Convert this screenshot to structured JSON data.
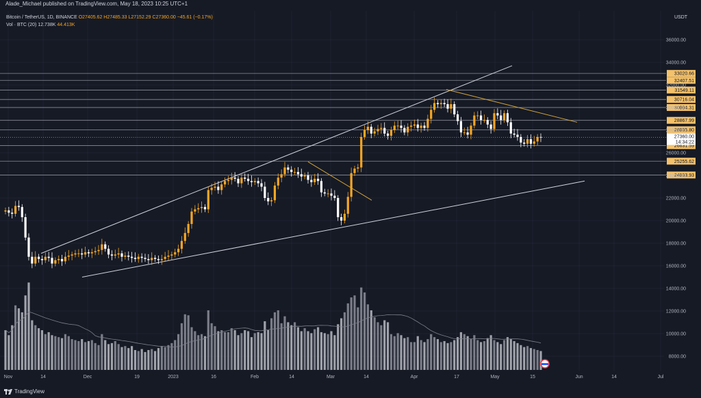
{
  "header": {
    "published": "Alade_Michael published on TradingView.com, May 18, 2023 10:25 UTC+1"
  },
  "legend": {
    "symbol": "Bitcoin / TetherUS, 1D, BINANCE",
    "ohlc": "O27405.62 H27485.33 L27152.29 C27360.00 −45.61 (−0.17%)",
    "volume_label": "Vol · BTC (20)",
    "volume_value": "12.738K",
    "volume_ma": "44.413K"
  },
  "axis": {
    "currency": "USDT",
    "price_ticks": [
      "36000.00",
      "34000.00",
      "32000.00",
      "30000.00",
      "28000.00",
      "26000.00",
      "24000.00",
      "22000.00",
      "20000.00",
      "18000.00",
      "16000.00",
      "14000.00",
      "12000.00",
      "10000.00",
      "8000.00"
    ],
    "time_ticks": [
      "Nov",
      "14",
      "Dec",
      "19",
      "2023",
      "16",
      "Feb",
      "14",
      "Mar",
      "14",
      "Apr",
      "17",
      "May",
      "15",
      "Jun",
      "14",
      "Jul"
    ]
  },
  "levels": [
    "33020.66",
    "32407.51",
    "31549.11",
    "30716.04",
    "30004.31",
    "28867.99",
    "28035.80",
    "26631.59",
    "25255.62",
    "24033.93"
  ],
  "current_price": {
    "value": "27360.00",
    "countdown": "14:34:22"
  },
  "colors": {
    "up": "#f5a623",
    "down": "#ffffff",
    "level_box": "#f5c26b",
    "trend": "#d4a53a",
    "background": "#161a25"
  },
  "chart_data": {
    "type": "candlestick",
    "ylim": [
      7000,
      37500
    ],
    "x": [
      "Nov",
      "14",
      "Dec",
      "19",
      "2023",
      "16",
      "Feb",
      "14",
      "Mar",
      "14",
      "Apr",
      "17",
      "May",
      "15",
      "Jun",
      "14",
      "Jul"
    ],
    "horizontal_levels": [
      33020.66,
      32407.51,
      31549.11,
      30716.04,
      30004.31,
      28867.99,
      28035.8,
      26631.59,
      25255.62,
      24033.93
    ],
    "last_close": 27360.0,
    "closes_approx": [
      20900,
      20700,
      20600,
      21300,
      21200,
      20300,
      18500,
      16800,
      16200,
      16800,
      16600,
      16500,
      16800,
      16700,
      16200,
      16500,
      16600,
      16400,
      16800,
      16900,
      17000,
      17100,
      17100,
      17000,
      17200,
      17100,
      17200,
      17300,
      17400,
      17900,
      17500,
      17000,
      16900,
      17000,
      17100,
      16800,
      16900,
      16800,
      16700,
      16600,
      16800,
      16700,
      16600,
      16500,
      16700,
      16600,
      16500,
      16600,
      16800,
      16900,
      17000,
      17200,
      17500,
      18200,
      18900,
      19700,
      20800,
      21000,
      21100,
      21200,
      21000,
      22700,
      22900,
      23000,
      22700,
      23200,
      23500,
      23600,
      23800,
      23700,
      23300,
      23800,
      23700,
      23500,
      23400,
      23500,
      23300,
      23000,
      22000,
      21700,
      21800,
      23100,
      23800,
      24100,
      24700,
      24500,
      24300,
      24300,
      24100,
      23900,
      24000,
      23600,
      23400,
      23700,
      23500,
      22500,
      22400,
      22400,
      22200,
      22000,
      20300,
      20000,
      20600,
      22100,
      24200,
      24600,
      24700,
      27400,
      28000,
      28300,
      27700,
      27900,
      28100,
      28200,
      27700,
      27500,
      28000,
      28400,
      28400,
      28200,
      27800,
      28300,
      28400,
      28500,
      28200,
      28400,
      28200,
      29000,
      29800,
      30400,
      30300,
      30400,
      30300,
      29900,
      30300,
      29400,
      28800,
      27800,
      27800,
      27600,
      28400,
      29300,
      29300,
      28900,
      28900,
      28500,
      28100,
      29500,
      29300,
      28900,
      29500,
      28700,
      27700,
      27600,
      27400,
      26900,
      26800,
      27200,
      26800,
      27000,
      27400,
      27360
    ],
    "volumes_approx": [
      4000,
      3500,
      4500,
      6500,
      6200,
      5800,
      7500,
      8800,
      5000,
      4500,
      4200,
      4000,
      3600,
      3800,
      3500,
      3400,
      3300,
      3200,
      3600,
      3400,
      3100,
      3000,
      2900,
      3100,
      2800,
      2900,
      3000,
      2700,
      2500,
      3600,
      3000,
      2600,
      2700,
      2900,
      2600,
      2300,
      2400,
      2200,
      2400,
      2000,
      1900,
      2100,
      1800,
      2000,
      2100,
      1900,
      2200,
      2400,
      2300,
      2500,
      2700,
      3000,
      3600,
      4700,
      5600,
      5500,
      4300,
      3900,
      3500,
      3600,
      3400,
      6000,
      4700,
      4400,
      3900,
      4000,
      3800,
      3800,
      4200,
      4000,
      3500,
      3700,
      4000,
      3900,
      3300,
      3700,
      3800,
      3700,
      4900,
      4000,
      5200,
      5800,
      6000,
      4700,
      5400,
      4800,
      4500,
      4800,
      4300,
      3900,
      4200,
      3900,
      3700,
      4100,
      4300,
      3800,
      3700,
      3600,
      3900,
      3500,
      4600,
      5200,
      5800,
      6700,
      7300,
      7500,
      6300,
      8300,
      7800,
      6600,
      6000,
      5300,
      4800,
      4500,
      5000,
      4800,
      3600,
      3400,
      3700,
      3500,
      3200,
      3300,
      2800,
      2800,
      3400,
      3000,
      2800,
      3100,
      3600,
      3300,
      3100,
      2800,
      2900,
      2700,
      2800,
      3000,
      3300,
      3800,
      3600,
      3400,
      3100,
      3500,
      3000,
      2800,
      2900,
      3200,
      3500,
      3000,
      2800,
      2600,
      3000,
      3300,
      3100,
      2900,
      2700,
      2500,
      2300,
      2400,
      2200,
      2100,
      2000,
      1900
    ]
  }
}
